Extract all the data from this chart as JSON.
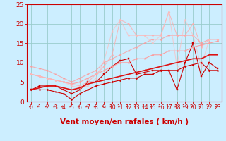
{
  "bg_color": "#cceeff",
  "grid_color": "#99cccc",
  "xlabel": "Vent moyen/en rafales ( km/h )",
  "xlim": [
    -0.5,
    23.5
  ],
  "ylim": [
    0,
    25
  ],
  "xticks": [
    0,
    1,
    2,
    3,
    4,
    5,
    6,
    7,
    8,
    9,
    10,
    11,
    12,
    13,
    14,
    15,
    16,
    17,
    18,
    19,
    20,
    21,
    22,
    23
  ],
  "yticks": [
    0,
    5,
    10,
    15,
    20,
    25
  ],
  "series": [
    {
      "x": [
        0,
        1,
        2,
        3,
        4,
        5,
        6,
        7,
        8,
        9,
        10,
        11,
        12,
        13,
        14,
        15,
        16,
        17,
        18,
        19,
        20,
        21,
        22,
        23
      ],
      "y": [
        3.0,
        3.0,
        3.0,
        2.5,
        2.0,
        0.5,
        2.0,
        3.0,
        4.0,
        4.5,
        5.0,
        5.5,
        6.0,
        6.0,
        7.0,
        7.0,
        8.0,
        8.0,
        8.0,
        9.0,
        9.5,
        10.0,
        8.0,
        8.0
      ],
      "color": "#cc0000",
      "alpha": 1.0,
      "lw": 0.8,
      "marker": "D",
      "ms": 1.5
    },
    {
      "x": [
        0,
        1,
        2,
        3,
        4,
        5,
        6,
        7,
        8,
        9,
        10,
        11,
        12,
        13,
        14,
        15,
        16,
        17,
        18,
        19,
        20,
        21,
        22,
        23
      ],
      "y": [
        3.0,
        4.0,
        4.0,
        4.0,
        3.0,
        2.0,
        3.0,
        5.0,
        5.0,
        7.0,
        9.0,
        10.5,
        11.0,
        7.0,
        7.5,
        8.0,
        8.0,
        8.0,
        3.0,
        10.0,
        15.0,
        6.5,
        10.0,
        8.5
      ],
      "color": "#cc0000",
      "alpha": 1.0,
      "lw": 0.8,
      "marker": "s",
      "ms": 1.5
    },
    {
      "x": [
        0,
        1,
        2,
        3,
        4,
        5,
        6,
        7,
        8,
        9,
        10,
        11,
        12,
        13,
        14,
        15,
        16,
        17,
        18,
        19,
        20,
        21,
        22,
        23
      ],
      "y": [
        7.0,
        6.5,
        6.0,
        5.5,
        5.0,
        4.5,
        5.0,
        6.0,
        7.0,
        8.0,
        9.0,
        10.0,
        10.0,
        11.0,
        11.0,
        12.0,
        12.0,
        13.0,
        13.0,
        13.0,
        14.0,
        14.5,
        15.0,
        15.5
      ],
      "color": "#ff9999",
      "alpha": 0.9,
      "lw": 0.8,
      "marker": "D",
      "ms": 1.5
    },
    {
      "x": [
        0,
        1,
        2,
        3,
        4,
        5,
        6,
        7,
        8,
        9,
        10,
        11,
        12,
        13,
        14,
        15,
        16,
        17,
        18,
        19,
        20,
        21,
        22,
        23
      ],
      "y": [
        9.0,
        8.5,
        8.0,
        7.0,
        6.0,
        5.0,
        6.0,
        7.0,
        8.0,
        10.0,
        11.0,
        12.0,
        13.0,
        14.0,
        15.0,
        16.0,
        16.0,
        17.0,
        17.0,
        17.0,
        17.0,
        15.0,
        16.0,
        16.0
      ],
      "color": "#ff9999",
      "alpha": 0.75,
      "lw": 0.8,
      "marker": "D",
      "ms": 1.5
    },
    {
      "x": [
        0,
        1,
        2,
        3,
        4,
        5,
        6,
        7,
        8,
        9,
        10,
        11,
        12,
        13,
        14,
        15,
        16,
        17,
        18,
        19,
        20,
        21,
        22,
        23
      ],
      "y": [
        7.0,
        6.5,
        6.0,
        5.5,
        5.0,
        4.5,
        4.0,
        5.0,
        7.0,
        9.0,
        12.0,
        21.0,
        20.0,
        17.0,
        17.0,
        17.0,
        17.0,
        23.0,
        17.0,
        17.0,
        20.0,
        14.0,
        16.0,
        16.0
      ],
      "color": "#ffaaaa",
      "alpha": 0.75,
      "lw": 0.8,
      "marker": "D",
      "ms": 1.5
    },
    {
      "x": [
        0,
        1,
        2,
        3,
        4,
        5,
        6,
        7,
        8,
        9,
        10,
        11,
        12,
        13,
        14,
        15,
        16,
        17,
        18,
        19,
        20,
        21,
        22,
        23
      ],
      "y": [
        7.0,
        6.5,
        6.0,
        5.5,
        5.0,
        4.0,
        3.5,
        4.0,
        6.0,
        10.5,
        18.0,
        21.0,
        17.0,
        17.0,
        17.0,
        15.0,
        17.0,
        23.0,
        9.0,
        21.0,
        17.0,
        9.0,
        16.0,
        16.0
      ],
      "color": "#ffbbbb",
      "alpha": 0.65,
      "lw": 0.8,
      "marker": "D",
      "ms": 1.5
    },
    {
      "x": [
        0,
        1,
        2,
        3,
        4,
        5,
        6,
        7,
        8,
        9,
        10,
        11,
        12,
        13,
        14,
        15,
        16,
        17,
        18,
        19,
        20,
        21,
        22,
        23
      ],
      "y": [
        3.0,
        3.5,
        4.0,
        4.0,
        3.5,
        3.0,
        3.5,
        4.5,
        5.0,
        5.5,
        6.0,
        6.5,
        7.0,
        7.5,
        8.0,
        8.5,
        9.0,
        9.5,
        10.0,
        10.5,
        11.0,
        11.0,
        12.0,
        12.0
      ],
      "color": "#dd1111",
      "alpha": 1.0,
      "lw": 1.2,
      "marker": null,
      "ms": 0
    }
  ],
  "xlabel_color": "#cc0000",
  "tick_color": "#cc0000",
  "axis_color": "#cc0000",
  "xlabel_fontsize": 7.5,
  "ytick_fontsize": 6.5,
  "xtick_fontsize": 5.5,
  "arrow_color": "#cc3333"
}
